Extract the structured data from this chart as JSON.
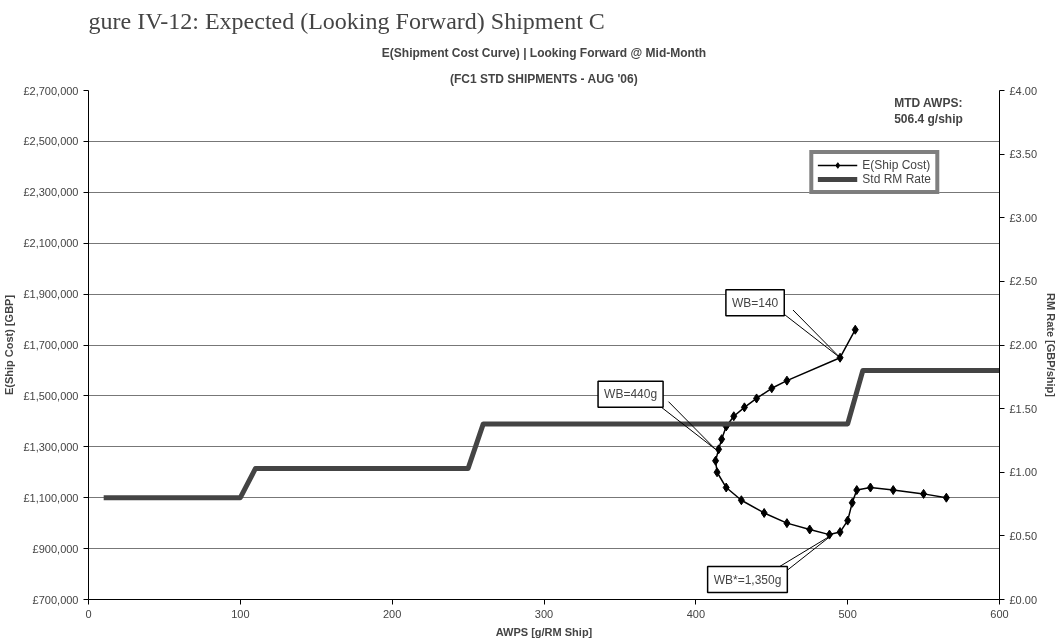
{
  "chart_data": {
    "type": "line",
    "title": "E(Shipment Cost Curve) | Looking Forward @ Mid-Month",
    "subtitle": "(FC1 STD SHIPMENTS - AUG '06)",
    "xlabel": "AWPS [g/RM Ship]",
    "ylabel": "E(Ship Cost) [GBP]",
    "y2label": "RM Rate [GBP/ship]",
    "xlim": [
      0,
      600
    ],
    "xticks": [
      0,
      100,
      200,
      300,
      400,
      500,
      600
    ],
    "ylim": [
      700000,
      2700000
    ],
    "yticks": [
      {
        "value": 700000,
        "label": "£700,000"
      },
      {
        "value": 900000,
        "label": "£900,000"
      },
      {
        "value": 1100000,
        "label": "£1,100,000"
      },
      {
        "value": 1300000,
        "label": "£1,300,000"
      },
      {
        "value": 1500000,
        "label": "£1,500,000"
      },
      {
        "value": 1700000,
        "label": "£1,700,000"
      },
      {
        "value": 1900000,
        "label": "£1,900,000"
      },
      {
        "value": 2100000,
        "label": "£2,100,000"
      },
      {
        "value": 2300000,
        "label": "£2,300,000"
      },
      {
        "value": 2500000,
        "label": "£2,500,000"
      },
      {
        "value": 2700000,
        "label": "£2,700,000"
      }
    ],
    "y2lim": [
      0,
      4
    ],
    "y2ticks": [
      {
        "value": 0,
        "label": "£0.00"
      },
      {
        "value": 0.5,
        "label": "£0.50"
      },
      {
        "value": 1,
        "label": "£1.00"
      },
      {
        "value": 1.5,
        "label": "£1.50"
      },
      {
        "value": 2,
        "label": "£2.00"
      },
      {
        "value": 2.5,
        "label": "£2.50"
      },
      {
        "value": 3,
        "label": "£3.00"
      },
      {
        "value": 3.5,
        "label": "£3.50"
      },
      {
        "value": 4,
        "label": "£4.00"
      }
    ],
    "grid": "y",
    "legend": "top right",
    "marker": "diamond",
    "series": [
      {
        "name": "E(Ship Cost)",
        "color": "#000000",
        "x": [
          505,
          495,
          460,
          450,
          440,
          432,
          425,
          420,
          417,
          415,
          413,
          414,
          420,
          430,
          445,
          460,
          475,
          488,
          495,
          500,
          503,
          506,
          515,
          530,
          550,
          565
        ],
        "values": [
          1760000,
          1650000,
          1560000,
          1530000,
          1490000,
          1455000,
          1420000,
          1380000,
          1330000,
          1290000,
          1245000,
          1200000,
          1140000,
          1090000,
          1040000,
          1000000,
          975000,
          955000,
          965000,
          1010000,
          1080000,
          1130000,
          1140000,
          1130000,
          1115000,
          1100000
        ]
      },
      {
        "name": "Std RM Rate",
        "color": "#444444",
        "axis": "y2",
        "marker": "none",
        "x": [
          10,
          100,
          110,
          250,
          260,
          500,
          510,
          600
        ],
        "values": [
          0.8,
          0.8,
          1.03,
          1.03,
          1.38,
          1.38,
          1.8,
          1.8
        ]
      }
    ],
    "annotations": [
      "gure IV-12: Expected (Looking Forward) Shipment C",
      "MTD AWPS:\n506.4 g/ship",
      {
        "text": "WB=140",
        "x": 495,
        "y": 1650000
      },
      {
        "text": "WB=440g",
        "x": 413,
        "y": 1290000
      },
      {
        "text": "WB*=1,350g",
        "x": 490,
        "y": 955000
      }
    ]
  }
}
